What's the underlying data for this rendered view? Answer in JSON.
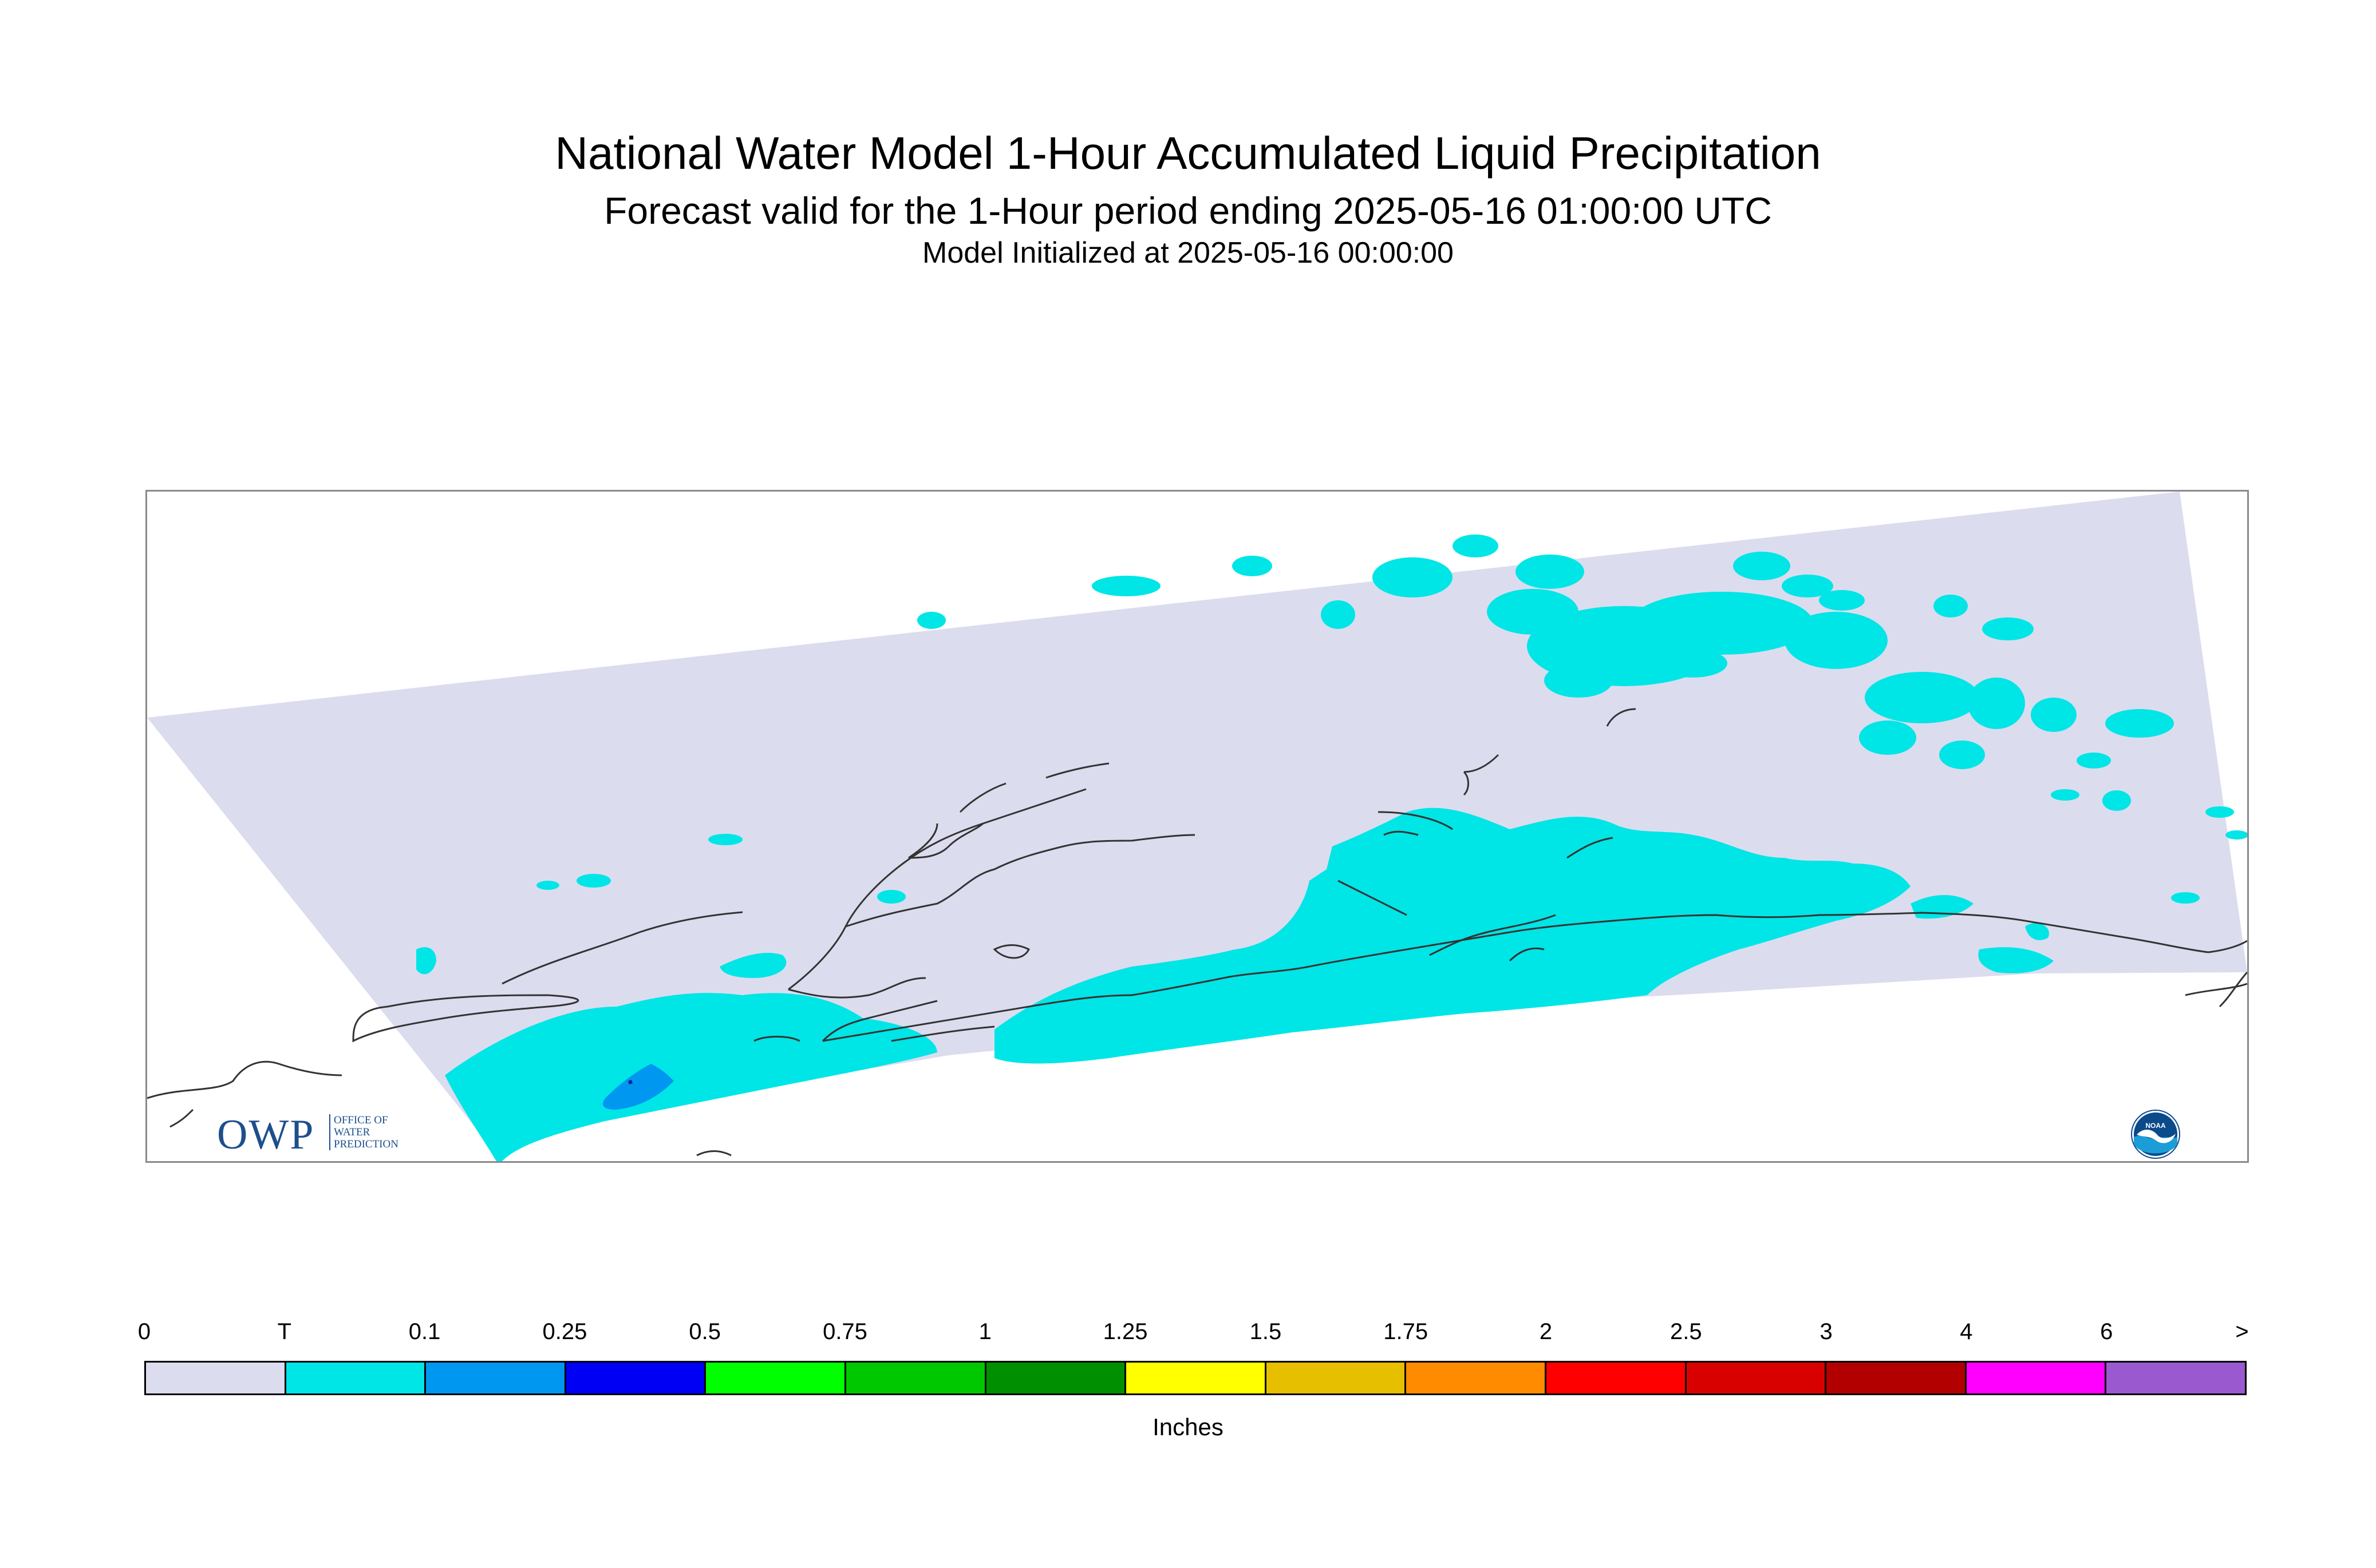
{
  "title": "National Water Model 1-Hour Accumulated Liquid Precipitation",
  "subtitle": "Forecast valid for the 1-Hour period ending 2025-05-16 01:00:00 UTC",
  "init_line": "Model Initialized at 2025-05-16 00:00:00",
  "owp_logo": {
    "mark": "OWP",
    "lines": [
      "OFFICE OF",
      "WATER",
      "PREDICTION"
    ]
  },
  "noaa_logo": {
    "icon": "noaa-emblem-icon",
    "text": "NOAA"
  },
  "legend": {
    "unit": "Inches",
    "labels": [
      "0",
      "T",
      "0.1",
      "0.25",
      "0.5",
      "0.75",
      "1",
      "1.25",
      "1.5",
      "1.75",
      "2",
      "2.5",
      "3",
      "4",
      "6",
      ">"
    ],
    "colors": [
      "#dcdcef",
      "#00e5e6",
      "#0097f0",
      "#0000f5",
      "#00ff00",
      "#00c800",
      "#008f00",
      "#ffff00",
      "#e6bf00",
      "#ff8c00",
      "#ff0000",
      "#d90000",
      "#b20000",
      "#ff00ff",
      "#9b59d0"
    ]
  },
  "colors": {
    "model_domain": "#dcdcef",
    "trace_precip": "#00e5e6",
    "light_precip": "#0097f0",
    "coastline": "#333333",
    "frame": "#8a8a8a"
  }
}
